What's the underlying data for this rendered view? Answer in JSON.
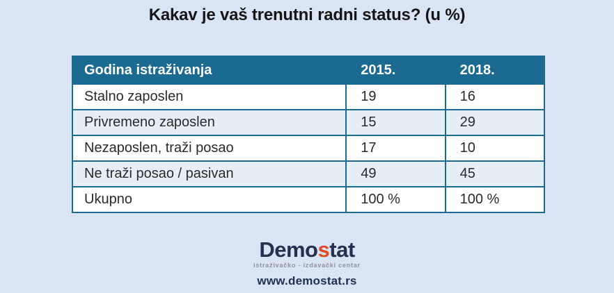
{
  "title": "Kakav je vaš trenutni radni status? (u %)",
  "table": {
    "header": {
      "col1": "Godina istraživanja",
      "col2": "2015.",
      "col3": "2018."
    },
    "rows": [
      {
        "label": "Stalno zaposlen",
        "v2015": "19",
        "v2018": "16"
      },
      {
        "label": "Privremeno zaposlen",
        "v2015": "15",
        "v2018": "29"
      },
      {
        "label": "Nezaposlen, traži posao",
        "v2015": "17",
        "v2018": "10"
      },
      {
        "label": "Ne traži posao / pasivan",
        "v2015": "49",
        "v2018": "45"
      },
      {
        "label": "Ukupno",
        "v2015": "100 %",
        "v2018": "100 %"
      }
    ]
  },
  "footer": {
    "logo": {
      "part1": "Demo",
      "accent": "s",
      "part2": "tat",
      "tagline": "istraživačko - izdavački  centar"
    },
    "website": "www.demostat.rs"
  },
  "colors": {
    "background": "#d9e5f4",
    "header_bg": "#1b6a92",
    "row_alt_bg": "#e6eef6",
    "border": "#1b6a92",
    "title_text": "#151515",
    "logo_navy": "#27304f",
    "logo_accent": "#e04a25",
    "tagline_gray": "#90909a"
  },
  "chart_data": {
    "type": "table",
    "title": "Kakav je vaš trenutni radni status? (u %)",
    "columns": [
      "Godina istraživanja",
      "2015.",
      "2018."
    ],
    "rows": [
      [
        "Stalno zaposlen",
        19,
        16
      ],
      [
        "Privremeno zaposlen",
        15,
        29
      ],
      [
        "Nezaposlen, traži posao",
        17,
        10
      ],
      [
        "Ne traži posao / pasivan",
        49,
        45
      ],
      [
        "Ukupno",
        "100 %",
        "100 %"
      ]
    ]
  }
}
